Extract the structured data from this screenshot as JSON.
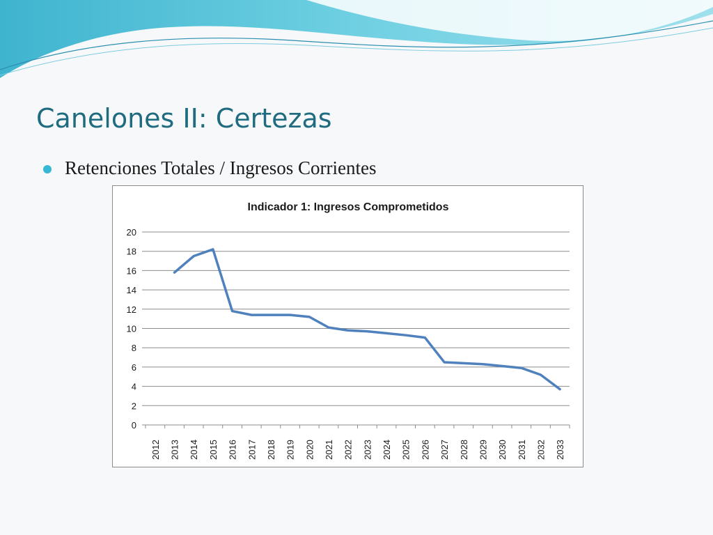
{
  "slide": {
    "title": "Canelones II: Certezas",
    "bullet": "Retenciones Totales / Ingresos Corrientes"
  },
  "colors": {
    "title": "#1f6b80",
    "bullet": "#35b8d4",
    "series": "#4f81bd",
    "decor_teal": "#5cc8dd"
  },
  "chart_data": {
    "type": "line",
    "title": "Indicador 1: Ingresos Comprometidos",
    "xlabel": "",
    "ylabel": "",
    "categories": [
      "2012",
      "2013",
      "2014",
      "2015",
      "2016",
      "2017",
      "2018",
      "2019",
      "2020",
      "2021",
      "2022",
      "2023",
      "2024",
      "2025",
      "2026",
      "2027",
      "2028",
      "2029",
      "2030",
      "2031",
      "2032",
      "2033"
    ],
    "series": [
      {
        "values": [
          null,
          15.8,
          17.5,
          18.2,
          11.8,
          11.4,
          11.4,
          11.4,
          11.2,
          10.1,
          9.8,
          9.7,
          9.5,
          9.3,
          9.05,
          6.5,
          6.4,
          6.3,
          6.1,
          5.9,
          5.2,
          3.7
        ]
      }
    ],
    "ylim": [
      0,
      20
    ],
    "yticks": [
      0,
      2,
      4,
      6,
      8,
      10,
      12,
      14,
      16,
      18,
      20
    ],
    "grid": true,
    "legend": "none"
  }
}
